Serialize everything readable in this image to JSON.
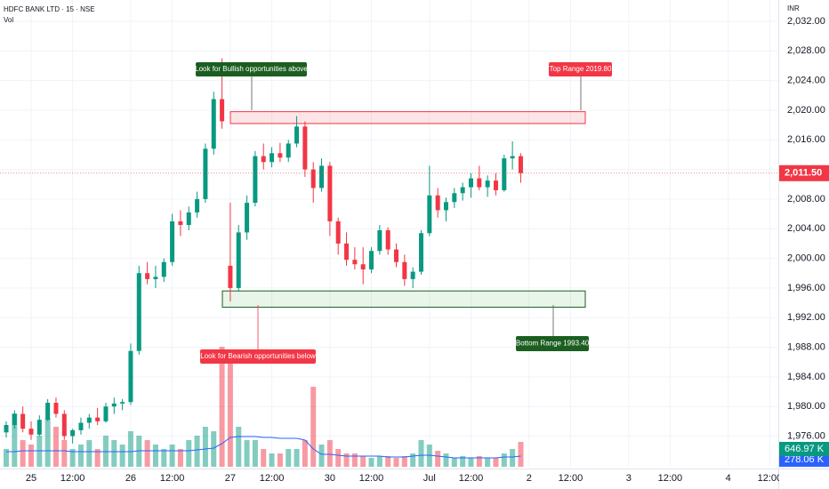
{
  "chart_data": {
    "type": "candlestick",
    "title": "HDFC BANK LTD · 15 · NSE",
    "volume_label": "Vol",
    "currency": "INR",
    "categories": [
      null,
      null,
      null,
      "25",
      null,
      null,
      null,
      null,
      "12:00",
      null,
      null,
      null,
      null,
      null,
      null,
      "26",
      null,
      null,
      null,
      null,
      "12:00",
      null,
      null,
      null,
      null,
      null,
      null,
      "27",
      null,
      null,
      null,
      null,
      "12:00",
      null,
      null,
      null,
      null,
      null,
      null,
      "30",
      null,
      null,
      null,
      null,
      "12:00",
      null,
      null,
      null,
      null,
      null,
      null,
      "Jul",
      null,
      null,
      null,
      null,
      "12:00",
      null,
      null,
      null,
      null,
      null,
      null,
      "2",
      null,
      null,
      null,
      null,
      "12:00",
      null,
      null,
      null,
      null,
      null,
      null,
      "3",
      null,
      null,
      null,
      null,
      "12:00",
      null,
      null,
      null,
      null,
      null,
      null,
      "4",
      null,
      null,
      null,
      null,
      "12:00"
    ],
    "open": [
      1976.5,
      1977.5,
      1979,
      1977,
      1976.2,
      1978.2,
      1980.5,
      1979,
      1976,
      1976.8,
      1977.8,
      1978.5,
      1978,
      1980,
      1980.4,
      1980.6,
      1987.5,
      1998,
      1997.2,
      1997.5,
      1999.5,
      2005,
      2004.5,
      2006.2,
      2008,
      2014.8,
      2021.5,
      1999,
      1996,
      2003.5,
      2007.5,
      2013.8,
      2013,
      2014.2,
      2013.6,
      2015.5,
      2017.8,
      2012,
      2009.5,
      2012.5,
      2005,
      2002,
      1999.8,
      1999.2,
      1998.5,
      2001,
      2003.8,
      2001.2,
      1999.5,
      1997.2,
      1998.2,
      2003.4,
      2008.5,
      2006.5,
      2007.6,
      2008.8,
      2009.6,
      2010.8,
      2009.6,
      2010.5,
      2009.2,
      2013.5,
      2013.8,
      null,
      null,
      null,
      null,
      null,
      null,
      null,
      null,
      null,
      null,
      null,
      null,
      null,
      null,
      null,
      null,
      null,
      null,
      null,
      null,
      null,
      null,
      null,
      null,
      null,
      null,
      null,
      null,
      null,
      null
    ],
    "high": [
      1978,
      1979.5,
      1980,
      1978,
      1978.8,
      1981,
      1981.2,
      1979.5,
      1977,
      1978.5,
      1979,
      1979.8,
      1980.5,
      1981.2,
      1981,
      1988.5,
      1999,
      1999.5,
      1999,
      2000,
      2006,
      2006.5,
      2007,
      2009,
      2015.5,
      2022.5,
      2027,
      2007.5,
      2004.5,
      2008.5,
      2014.5,
      2015.5,
      2015,
      2015.6,
      2016,
      2019.2,
      2018.5,
      2013,
      2013.5,
      2013,
      2005.5,
      2003.5,
      2001.5,
      2001.5,
      2001.5,
      2004.5,
      2004.2,
      2002,
      2000.5,
      1998.8,
      2003.8,
      2012.5,
      2009.5,
      2008.2,
      2009.5,
      2010.2,
      2011.5,
      2012.5,
      2011.2,
      2011.5,
      2014,
      2015.8,
      2014.2,
      null,
      null,
      null,
      null,
      null,
      null,
      null,
      null,
      null,
      null,
      null,
      null,
      null,
      null,
      null,
      null,
      null,
      null,
      null,
      null,
      null,
      null,
      null,
      null,
      null,
      null,
      null,
      null,
      null,
      null
    ],
    "low": [
      1975.8,
      1977,
      1976.5,
      1975.5,
      1976,
      1978,
      1978.5,
      1975.5,
      1975,
      1976.2,
      1977,
      1977.5,
      1977.8,
      1979,
      1979.5,
      1980.2,
      1987,
      1996.5,
      1996,
      1996.8,
      1999,
      2003,
      2003.8,
      2005.5,
      2007.5,
      2014,
      2017.5,
      1994.2,
      1995.5,
      2002.5,
      2007,
      2012,
      2012.3,
      2013,
      2013,
      2015,
      2011,
      2007.5,
      2009,
      2003,
      2000.5,
      1999,
      1998.5,
      1996.5,
      1998,
      2000.5,
      2000.5,
      1998.8,
      1996.3,
      1996,
      1997.8,
      2003,
      2005.5,
      2005,
      2006.8,
      2007.8,
      2008.2,
      2009.2,
      2008.3,
      2008.5,
      2009,
      2012,
      2010.2,
      null,
      null,
      null,
      null,
      null,
      null,
      null,
      null,
      null,
      null,
      null,
      null,
      null,
      null,
      null,
      null,
      null,
      null,
      null,
      null,
      null,
      null,
      null,
      null,
      null,
      null,
      null,
      null,
      null,
      null
    ],
    "close": [
      1977.5,
      1979,
      1977,
      1976.2,
      1978.2,
      1980.5,
      1979,
      1976,
      1976.8,
      1977.8,
      1978.5,
      1978,
      1980,
      1980.4,
      1980.6,
      1987.5,
      1998,
      1997.2,
      1997.5,
      1999.5,
      2005,
      2004.5,
      2006.2,
      2008,
      2014.8,
      2021.5,
      2018.5,
      1996,
      2003.5,
      2007.5,
      2013.8,
      2013,
      2014.2,
      2013.6,
      2015.5,
      2017.8,
      2012,
      2009.5,
      2012.5,
      2005,
      2002,
      1999.8,
      1999.2,
      1998.5,
      2001,
      2003.8,
      2001.2,
      1999.5,
      1997.2,
      1998.2,
      2003.4,
      2008.5,
      2006.5,
      2007.6,
      2008.8,
      2009.6,
      2010.8,
      2009.6,
      2010.5,
      2009.2,
      2013.5,
      2013.8,
      2011.5,
      null,
      null,
      null,
      null,
      null,
      null,
      null,
      null,
      null,
      null,
      null,
      null,
      null,
      null,
      null,
      null,
      null,
      null,
      null,
      null,
      null,
      null,
      null,
      null,
      null,
      null,
      null,
      null,
      null,
      null
    ],
    "volume": [
      462,
      1386,
      693,
      577.5,
      808.5,
      1270.5,
      1039.5,
      693,
      462,
      577.5,
      693,
      462,
      808.5,
      693,
      577.5,
      924,
      808.5,
      693,
      577.5,
      462,
      577.5,
      462,
      693,
      808.5,
      1039.5,
      924,
      3118.5,
      3003,
      1039.5,
      693,
      693,
      462,
      346.5,
      346.5,
      462,
      462,
      693,
      2079,
      577.5,
      693,
      462,
      346.5,
      346.5,
      277.2,
      231,
      277.2,
      277.2,
      231,
      277.2,
      346.5,
      693,
      577.5,
      415.8,
      346.5,
      231,
      277.2,
      231,
      277.2,
      231,
      231,
      346.5,
      462,
      646.97,
      null,
      null,
      null,
      null,
      null,
      null,
      null,
      null,
      null,
      null,
      null,
      null,
      null,
      null,
      null,
      null,
      null,
      null,
      null,
      null,
      null,
      null,
      null,
      null,
      null,
      null,
      null,
      null,
      null,
      null
    ],
    "volume_ma": [
      392.7,
      392.7,
      415.8,
      415.8,
      415.8,
      415.8,
      415.8,
      415.8,
      392.7,
      392.7,
      392.7,
      392.7,
      392.7,
      392.7,
      392.7,
      392.7,
      415.8,
      415.8,
      415.8,
      415.8,
      415.8,
      415.8,
      415.8,
      438.9,
      462,
      485.1,
      600.6,
      762.3,
      785.4,
      785.4,
      785.4,
      762.3,
      762.3,
      739.2,
      739.2,
      739.2,
      693,
      462,
      323.4,
      323.4,
      300.3,
      277.2,
      277.2,
      277.2,
      277.2,
      277.2,
      254.1,
      254.1,
      254.1,
      277.2,
      300.3,
      300.3,
      277.2,
      254.1,
      231,
      231,
      231,
      231,
      231,
      231,
      254.1,
      254.1,
      278.06,
      null,
      null,
      null,
      null,
      null,
      null,
      null,
      null,
      null,
      null,
      null,
      null,
      null,
      null,
      null,
      null,
      null,
      null,
      null,
      null,
      null,
      null,
      null,
      null,
      null,
      null,
      null,
      null,
      null,
      null
    ],
    "volume_last_label": "646.97 K",
    "volume_ma_last_label": "278.06 K",
    "last_price_label": "2,011.50",
    "up_color": "#089981",
    "down_color": "#f23645",
    "volume_ma_color": "#2962ff",
    "ylim": [
      1971.86,
      2034.88
    ],
    "volume_ylim": [
      0,
      12127.5
    ],
    "yticks": [
      {
        "value": 2032,
        "label": "2,032.00"
      },
      {
        "value": 2028,
        "label": "2,028.00"
      },
      {
        "value": 2024,
        "label": "2,024.00"
      },
      {
        "value": 2020,
        "label": "2,020.00"
      },
      {
        "value": 2016,
        "label": "2,016.00"
      },
      {
        "value": 2012,
        "label": "2,012.00"
      },
      {
        "value": 2008,
        "label": "2,008.00"
      },
      {
        "value": 2004,
        "label": "2,004.00"
      },
      {
        "value": 2000,
        "label": "2,000.00"
      },
      {
        "value": 1996,
        "label": "1,996.00"
      },
      {
        "value": 1992,
        "label": "1,992.00"
      },
      {
        "value": 1988,
        "label": "1,988.00"
      },
      {
        "value": 1984,
        "label": "1,984.00"
      },
      {
        "value": 1980,
        "label": "1,980.00"
      },
      {
        "value": 1976,
        "label": "1,976.00"
      }
    ],
    "grid": true,
    "zones": [
      {
        "label": "Top Range 2019.80",
        "high": 2019.8,
        "low": 2018.2,
        "color": "#f23645"
      },
      {
        "label": "Bottom Range 1993.40",
        "high": 1995.6,
        "low": 1993.4,
        "color": "#1b5e20"
      }
    ],
    "annotations": [
      "Look for Bullish opportunities above",
      "Look for Bearish opportunities below"
    ]
  }
}
